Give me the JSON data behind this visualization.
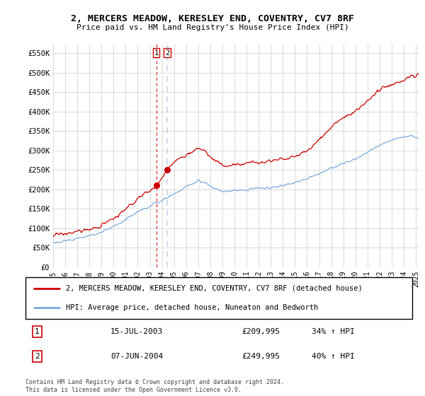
{
  "title": "2, MERCERS MEADOW, KERESLEY END, COVENTRY, CV7 8RF",
  "subtitle": "Price paid vs. HM Land Registry's House Price Index (HPI)",
  "ylim": [
    0,
    575000
  ],
  "yticks": [
    0,
    50000,
    100000,
    150000,
    200000,
    250000,
    300000,
    350000,
    400000,
    450000,
    500000,
    550000
  ],
  "ytick_labels": [
    "£0",
    "£50K",
    "£100K",
    "£150K",
    "£200K",
    "£250K",
    "£300K",
    "£350K",
    "£400K",
    "£450K",
    "£500K",
    "£550K"
  ],
  "sale1_date": 2003.54,
  "sale1_price": 209995,
  "sale1_label": "1",
  "sale2_date": 2004.44,
  "sale2_price": 249995,
  "sale2_label": "2",
  "legend_line1": "2, MERCERS MEADOW, KERESLEY END, COVENTRY, CV7 8RF (detached house)",
  "legend_line2": "HPI: Average price, detached house, Nuneaton and Bedworth",
  "table_row1": [
    "1",
    "15-JUL-2003",
    "£209,995",
    "34% ↑ HPI"
  ],
  "table_row2": [
    "2",
    "07-JUN-2004",
    "£249,995",
    "40% ↑ HPI"
  ],
  "footer": "Contains HM Land Registry data © Crown copyright and database right 2024.\nThis data is licensed under the Open Government Licence v3.0.",
  "line1_color": "#cc0000",
  "line2_color": "#7aaadd",
  "vline1_color": "#cc0000",
  "vline2_color": "#aabbdd",
  "background_color": "#ffffff",
  "grid_color": "#cccccc",
  "xmin": 1995,
  "xmax": 2025.3
}
